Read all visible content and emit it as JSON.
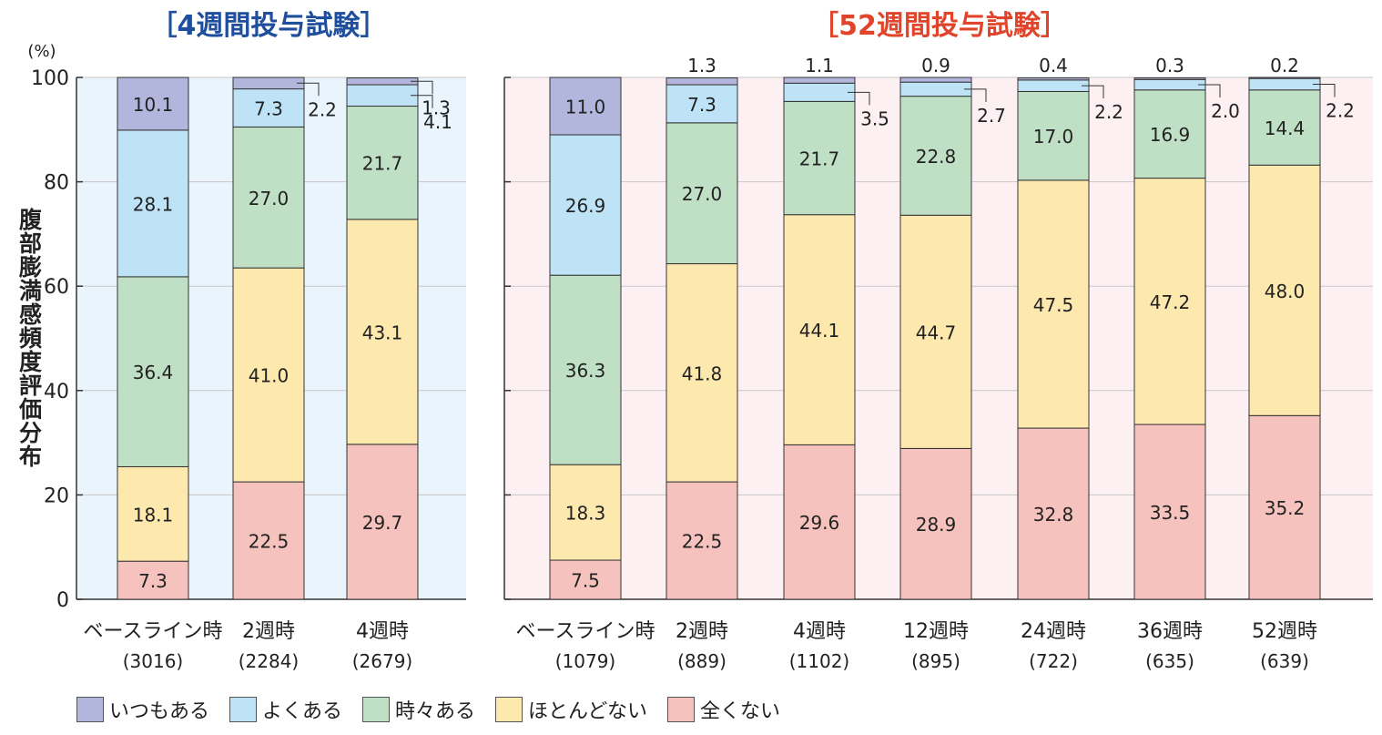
{
  "chart_data": [
    {
      "type": "bar",
      "stacked": true,
      "title": "［4週間投与試験］",
      "title_color": "#1f4e9c",
      "ylabel": "腹部膨満感頻度評価分布",
      "yunit": "(%)",
      "ylim": [
        0,
        100
      ],
      "yticks": [
        "0",
        "20",
        "40",
        "60",
        "80",
        "100"
      ],
      "categories": [
        "ベースライン時",
        "2週時",
        "4週時"
      ],
      "n_labels": [
        "(3016)",
        "(2284)",
        "(2679)"
      ],
      "background": "#eaf4fd",
      "series": [
        {
          "name": "全くない",
          "values": [
            7.3,
            22.5,
            29.7
          ],
          "labels": [
            "7.3",
            "22.5",
            "29.7"
          ]
        },
        {
          "name": "ほとんどない",
          "values": [
            18.1,
            41.0,
            43.1
          ],
          "labels": [
            "18.1",
            "41.0",
            "43.1"
          ]
        },
        {
          "name": "時々ある",
          "values": [
            36.4,
            27.0,
            21.7
          ],
          "labels": [
            "36.4",
            "27.0",
            "21.7"
          ]
        },
        {
          "name": "よくある",
          "values": [
            28.1,
            7.3,
            4.1
          ],
          "labels": [
            "28.1",
            "7.3",
            "4.1"
          ]
        },
        {
          "name": "いつもある",
          "values": [
            10.1,
            2.2,
            1.3
          ],
          "labels": [
            "10.1",
            "2.2",
            "1.3"
          ]
        }
      ]
    },
    {
      "type": "bar",
      "stacked": true,
      "title": "［52週間投与試験］",
      "title_color": "#e0452b",
      "ylim": [
        0,
        100
      ],
      "categories": [
        "ベースライン時",
        "2週時",
        "4週時",
        "12週時",
        "24週時",
        "36週時",
        "52週時"
      ],
      "n_labels": [
        "(1079)",
        "(889)",
        "(1102)",
        "(895)",
        "(722)",
        "(635)",
        "(639)"
      ],
      "background": "#fdf0f3",
      "series": [
        {
          "name": "全くない",
          "values": [
            7.5,
            22.5,
            29.6,
            28.9,
            32.8,
            33.5,
            35.2
          ],
          "labels": [
            "7.5",
            "22.5",
            "29.6",
            "28.9",
            "32.8",
            "33.5",
            "35.2"
          ]
        },
        {
          "name": "ほとんどない",
          "values": [
            18.3,
            41.8,
            44.1,
            44.7,
            47.5,
            47.2,
            48.0
          ],
          "labels": [
            "18.3",
            "41.8",
            "44.1",
            "44.7",
            "47.5",
            "47.2",
            "48.0"
          ]
        },
        {
          "name": "時々ある",
          "values": [
            36.3,
            27.0,
            21.7,
            22.8,
            17.0,
            16.9,
            14.4
          ],
          "labels": [
            "36.3",
            "27.0",
            "21.7",
            "22.8",
            "17.0",
            "16.9",
            "14.4"
          ]
        },
        {
          "name": "よくある",
          "values": [
            26.9,
            7.3,
            3.5,
            2.7,
            2.2,
            2.0,
            2.2
          ],
          "labels": [
            "26.9",
            "7.3",
            "3.5",
            "2.7",
            "2.2",
            "2.0",
            "2.2"
          ]
        },
        {
          "name": "いつもある",
          "values": [
            11.0,
            1.3,
            1.1,
            0.9,
            0.4,
            0.3,
            0.2
          ],
          "labels": [
            "11.0",
            "1.3",
            "1.1",
            "0.9",
            "0.4",
            "0.3",
            "0.2"
          ]
        }
      ]
    }
  ],
  "legend": [
    {
      "name": "いつもある",
      "color": "#b3b6dc"
    },
    {
      "name": "よくある",
      "color": "#bfe3f6"
    },
    {
      "name": "時々ある",
      "color": "#bfe0c4"
    },
    {
      "name": "ほとんどない",
      "color": "#fde8ae"
    },
    {
      "name": "全くない",
      "color": "#f5c2bd"
    }
  ]
}
